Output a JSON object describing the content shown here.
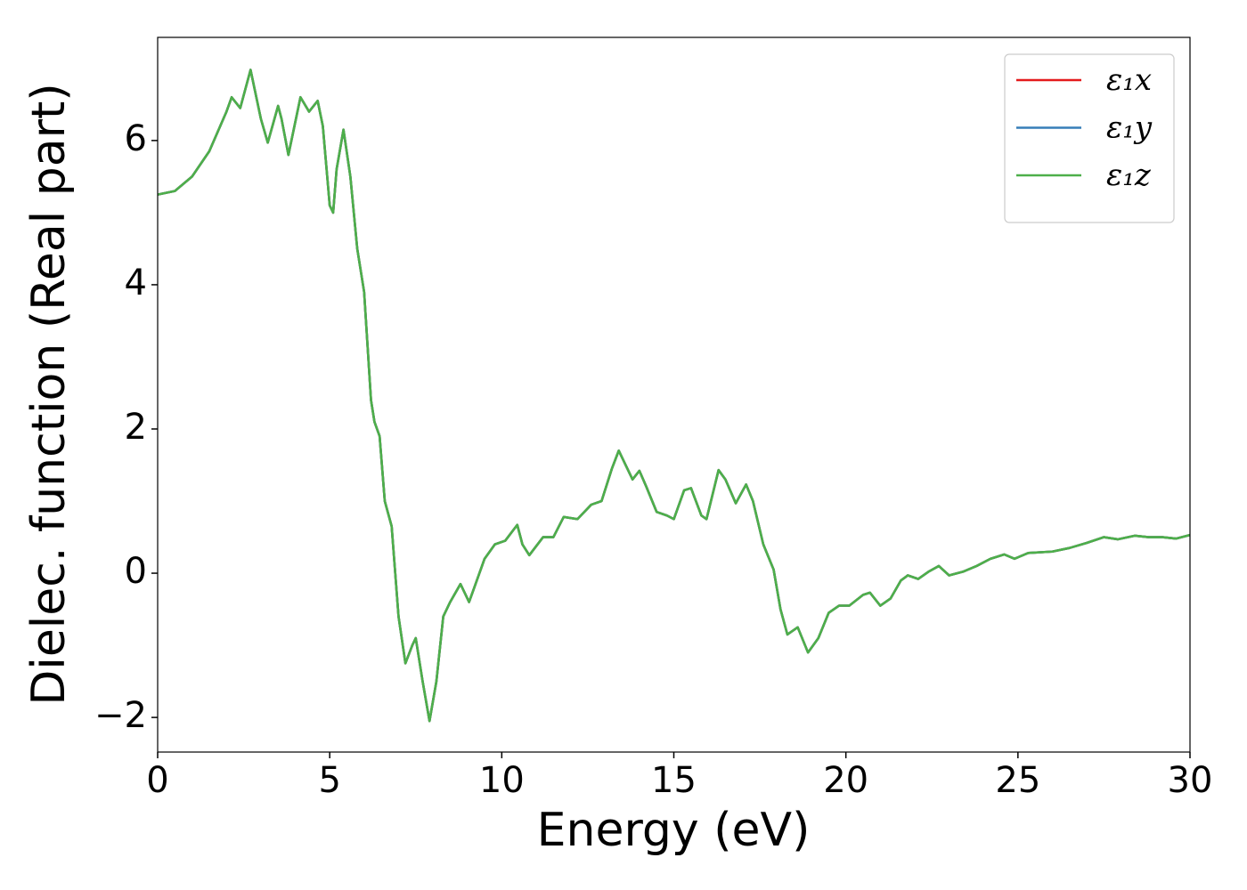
{
  "chart_data": {
    "type": "line",
    "xlabel": "Energy (eV)",
    "ylabel": "Dielec. function (Real part)",
    "xlim": [
      0,
      30
    ],
    "ylim": [
      -2.48,
      7.43
    ],
    "xticks": [
      0,
      5,
      10,
      15,
      20,
      25,
      30
    ],
    "yticks": [
      {
        "value": -2,
        "label": "−2"
      },
      0,
      2,
      4,
      6
    ],
    "legend": "upper right",
    "x": [
      0,
      0.5,
      1.0,
      1.5,
      2.0,
      2.15,
      2.4,
      2.7,
      3.0,
      3.2,
      3.5,
      3.6,
      3.8,
      4.15,
      4.4,
      4.65,
      4.8,
      5.0,
      5.1,
      5.2,
      5.4,
      5.6,
      5.8,
      6.0,
      6.2,
      6.3,
      6.45,
      6.6,
      6.8,
      7.0,
      7.2,
      7.4,
      7.5,
      7.7,
      7.9,
      8.1,
      8.3,
      8.5,
      8.8,
      9.05,
      9.2,
      9.5,
      9.8,
      10.1,
      10.45,
      10.6,
      10.8,
      11.2,
      11.5,
      11.8,
      12.2,
      12.6,
      12.9,
      13.2,
      13.4,
      13.6,
      13.8,
      14.0,
      14.2,
      14.5,
      14.8,
      15.0,
      15.3,
      15.5,
      15.8,
      15.95,
      16.3,
      16.5,
      16.8,
      17.1,
      17.3,
      17.6,
      17.9,
      18.1,
      18.3,
      18.6,
      18.9,
      19.2,
      19.5,
      19.8,
      20.1,
      20.5,
      20.7,
      21.0,
      21.3,
      21.6,
      21.8,
      22.1,
      22.4,
      22.7,
      23.0,
      23.4,
      23.8,
      24.2,
      24.6,
      24.9,
      25.3,
      26.0,
      26.5,
      27.0,
      27.5,
      27.9,
      28.4,
      28.8,
      29.2,
      29.6,
      30
    ],
    "series": [
      {
        "name": "ε₁x",
        "color": "#e41a1c",
        "values": [
          5.25,
          5.3,
          5.5,
          5.85,
          6.4,
          6.6,
          6.45,
          6.98,
          6.3,
          5.97,
          6.48,
          6.3,
          5.8,
          6.6,
          6.4,
          6.55,
          6.2,
          5.1,
          5.0,
          5.6,
          6.15,
          5.5,
          4.5,
          3.9,
          2.4,
          2.1,
          1.9,
          1.0,
          0.65,
          -0.6,
          -1.25,
          -1.0,
          -0.9,
          -1.5,
          -2.05,
          -1.5,
          -0.6,
          -0.4,
          -0.15,
          -0.4,
          -0.2,
          0.2,
          0.4,
          0.45,
          0.67,
          0.4,
          0.25,
          0.5,
          0.5,
          0.78,
          0.75,
          0.95,
          1.0,
          1.45,
          1.7,
          1.5,
          1.3,
          1.42,
          1.2,
          0.85,
          0.8,
          0.75,
          1.15,
          1.18,
          0.8,
          0.75,
          1.43,
          1.3,
          0.97,
          1.23,
          1.0,
          0.4,
          0.05,
          -0.5,
          -0.85,
          -0.75,
          -1.1,
          -0.9,
          -0.55,
          -0.45,
          -0.45,
          -0.3,
          -0.27,
          -0.45,
          -0.35,
          -0.1,
          -0.03,
          -0.08,
          0.02,
          0.1,
          -0.03,
          0.02,
          0.1,
          0.2,
          0.26,
          0.2,
          0.28,
          0.3,
          0.35,
          0.42,
          0.5,
          0.47,
          0.52,
          0.5,
          0.5,
          0.48,
          0.53
        ]
      },
      {
        "name": "ε₁y",
        "color": "#377eb8",
        "values": [
          5.25,
          5.3,
          5.5,
          5.85,
          6.4,
          6.6,
          6.45,
          6.98,
          6.3,
          5.97,
          6.48,
          6.3,
          5.8,
          6.6,
          6.4,
          6.55,
          6.2,
          5.1,
          5.0,
          5.6,
          6.15,
          5.5,
          4.5,
          3.9,
          2.4,
          2.1,
          1.9,
          1.0,
          0.65,
          -0.6,
          -1.25,
          -1.0,
          -0.9,
          -1.5,
          -2.05,
          -1.5,
          -0.6,
          -0.4,
          -0.15,
          -0.4,
          -0.2,
          0.2,
          0.4,
          0.45,
          0.67,
          0.4,
          0.25,
          0.5,
          0.5,
          0.78,
          0.75,
          0.95,
          1.0,
          1.45,
          1.7,
          1.5,
          1.3,
          1.42,
          1.2,
          0.85,
          0.8,
          0.75,
          1.15,
          1.18,
          0.8,
          0.75,
          1.43,
          1.3,
          0.97,
          1.23,
          1.0,
          0.4,
          0.05,
          -0.5,
          -0.85,
          -0.75,
          -1.1,
          -0.9,
          -0.55,
          -0.45,
          -0.45,
          -0.3,
          -0.27,
          -0.45,
          -0.35,
          -0.1,
          -0.03,
          -0.08,
          0.02,
          0.1,
          -0.03,
          0.02,
          0.1,
          0.2,
          0.26,
          0.2,
          0.28,
          0.3,
          0.35,
          0.42,
          0.5,
          0.47,
          0.52,
          0.5,
          0.5,
          0.48,
          0.53
        ]
      },
      {
        "name": "ε₁z",
        "color": "#4daf4a",
        "values": [
          5.25,
          5.3,
          5.5,
          5.85,
          6.4,
          6.6,
          6.45,
          6.98,
          6.3,
          5.97,
          6.48,
          6.3,
          5.8,
          6.6,
          6.4,
          6.55,
          6.2,
          5.1,
          5.0,
          5.6,
          6.15,
          5.5,
          4.5,
          3.9,
          2.4,
          2.1,
          1.9,
          1.0,
          0.65,
          -0.6,
          -1.25,
          -1.0,
          -0.9,
          -1.5,
          -2.05,
          -1.5,
          -0.6,
          -0.4,
          -0.15,
          -0.4,
          -0.2,
          0.2,
          0.4,
          0.45,
          0.67,
          0.4,
          0.25,
          0.5,
          0.5,
          0.78,
          0.75,
          0.95,
          1.0,
          1.45,
          1.7,
          1.5,
          1.3,
          1.42,
          1.2,
          0.85,
          0.8,
          0.75,
          1.15,
          1.18,
          0.8,
          0.75,
          1.43,
          1.3,
          0.97,
          1.23,
          1.0,
          0.4,
          0.05,
          -0.5,
          -0.85,
          -0.75,
          -1.1,
          -0.9,
          -0.55,
          -0.45,
          -0.45,
          -0.3,
          -0.27,
          -0.45,
          -0.35,
          -0.1,
          -0.03,
          -0.08,
          0.02,
          0.1,
          -0.03,
          0.02,
          0.1,
          0.2,
          0.26,
          0.2,
          0.28,
          0.3,
          0.35,
          0.42,
          0.5,
          0.47,
          0.52,
          0.5,
          0.5,
          0.48,
          0.53
        ]
      }
    ]
  }
}
